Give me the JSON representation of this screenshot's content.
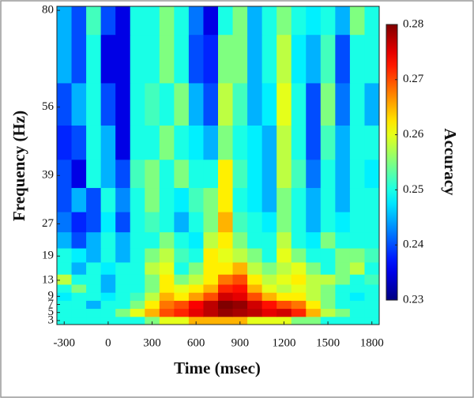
{
  "chart_data": {
    "type": "heatmap",
    "xlabel": "Time (msec)",
    "ylabel": "Frequency (Hz)",
    "colorbar_label": "Accuracy",
    "x": [
      -300,
      -200,
      -100,
      0,
      100,
      200,
      300,
      400,
      500,
      600,
      700,
      800,
      900,
      1000,
      1100,
      1200,
      1300,
      1400,
      1500,
      1600,
      1700,
      1800
    ],
    "y": [
      3,
      5,
      7,
      9,
      11,
      13,
      16,
      19,
      23,
      27,
      33,
      39,
      47,
      56,
      68,
      80
    ],
    "values": [
      [
        0.25,
        0.25,
        0.25,
        0.25,
        0.25,
        0.25,
        0.255,
        0.26,
        0.26,
        0.265,
        0.265,
        0.265,
        0.265,
        0.26,
        0.26,
        0.26,
        0.255,
        0.255,
        0.25,
        0.25,
        0.25,
        0.25
      ],
      [
        0.25,
        0.25,
        0.25,
        0.25,
        0.255,
        0.26,
        0.265,
        0.27,
        0.272,
        0.275,
        0.277,
        0.279,
        0.278,
        0.277,
        0.275,
        0.276,
        0.272,
        0.265,
        0.258,
        0.255,
        0.25,
        0.25
      ],
      [
        0.25,
        0.25,
        0.245,
        0.25,
        0.25,
        0.255,
        0.262,
        0.268,
        0.27,
        0.274,
        0.277,
        0.28,
        0.279,
        0.276,
        0.273,
        0.27,
        0.268,
        0.262,
        0.255,
        0.25,
        0.25,
        0.25
      ],
      [
        0.248,
        0.25,
        0.25,
        0.248,
        0.25,
        0.252,
        0.258,
        0.265,
        0.262,
        0.266,
        0.27,
        0.276,
        0.275,
        0.27,
        0.265,
        0.262,
        0.262,
        0.258,
        0.255,
        0.25,
        0.248,
        0.25
      ],
      [
        0.25,
        0.255,
        0.25,
        0.245,
        0.25,
        0.25,
        0.255,
        0.262,
        0.26,
        0.262,
        0.265,
        0.272,
        0.273,
        0.265,
        0.26,
        0.258,
        0.26,
        0.258,
        0.255,
        0.25,
        0.25,
        0.25
      ],
      [
        0.258,
        0.25,
        0.25,
        0.245,
        0.25,
        0.25,
        0.255,
        0.262,
        0.255,
        0.258,
        0.262,
        0.268,
        0.27,
        0.262,
        0.258,
        0.26,
        0.262,
        0.258,
        0.258,
        0.255,
        0.25,
        0.252
      ],
      [
        0.25,
        0.245,
        0.25,
        0.248,
        0.25,
        0.25,
        0.258,
        0.26,
        0.25,
        0.255,
        0.262,
        0.262,
        0.265,
        0.258,
        0.255,
        0.258,
        0.26,
        0.255,
        0.25,
        0.255,
        0.258,
        0.25
      ],
      [
        0.25,
        0.248,
        0.245,
        0.25,
        0.245,
        0.25,
        0.255,
        0.258,
        0.252,
        0.25,
        0.262,
        0.26,
        0.258,
        0.255,
        0.25,
        0.26,
        0.255,
        0.25,
        0.25,
        0.255,
        0.255,
        0.252
      ],
      [
        0.245,
        0.24,
        0.245,
        0.25,
        0.245,
        0.25,
        0.25,
        0.255,
        0.25,
        0.248,
        0.258,
        0.262,
        0.255,
        0.25,
        0.25,
        0.258,
        0.25,
        0.248,
        0.255,
        0.25,
        0.25,
        0.25
      ],
      [
        0.242,
        0.238,
        0.24,
        0.248,
        0.24,
        0.25,
        0.252,
        0.25,
        0.245,
        0.25,
        0.255,
        0.265,
        0.252,
        0.25,
        0.248,
        0.255,
        0.25,
        0.245,
        0.25,
        0.248,
        0.25,
        0.25
      ],
      [
        0.24,
        0.245,
        0.24,
        0.25,
        0.243,
        0.25,
        0.255,
        0.25,
        0.248,
        0.252,
        0.255,
        0.262,
        0.25,
        0.248,
        0.245,
        0.255,
        0.25,
        0.245,
        0.25,
        0.245,
        0.25,
        0.25
      ],
      [
        0.24,
        0.235,
        0.25,
        0.245,
        0.24,
        0.252,
        0.255,
        0.25,
        0.255,
        0.25,
        0.25,
        0.262,
        0.252,
        0.248,
        0.245,
        0.258,
        0.252,
        0.242,
        0.25,
        0.245,
        0.25,
        0.248
      ],
      [
        0.238,
        0.24,
        0.25,
        0.245,
        0.235,
        0.25,
        0.25,
        0.255,
        0.25,
        0.248,
        0.245,
        0.255,
        0.25,
        0.248,
        0.245,
        0.258,
        0.25,
        0.24,
        0.252,
        0.245,
        0.25,
        0.25
      ],
      [
        0.24,
        0.245,
        0.25,
        0.24,
        0.235,
        0.25,
        0.252,
        0.25,
        0.255,
        0.245,
        0.24,
        0.258,
        0.252,
        0.245,
        0.248,
        0.26,
        0.25,
        0.24,
        0.255,
        0.242,
        0.25,
        0.245
      ],
      [
        0.245,
        0.24,
        0.25,
        0.235,
        0.235,
        0.25,
        0.25,
        0.255,
        0.25,
        0.24,
        0.238,
        0.255,
        0.255,
        0.245,
        0.25,
        0.258,
        0.248,
        0.245,
        0.252,
        0.24,
        0.25,
        0.25
      ],
      [
        0.245,
        0.24,
        0.252,
        0.24,
        0.235,
        0.25,
        0.25,
        0.255,
        0.25,
        0.242,
        0.235,
        0.25,
        0.255,
        0.245,
        0.25,
        0.255,
        0.25,
        0.248,
        0.25,
        0.245,
        0.255,
        0.25
      ]
    ],
    "xlim": [
      -350,
      1850
    ],
    "xticks": [
      -300,
      0,
      300,
      600,
      900,
      1200,
      1500,
      1800
    ],
    "ylim": [
      2,
      81
    ],
    "yticks": [
      3,
      5,
      7,
      9,
      13,
      19,
      27,
      39,
      56,
      80
    ],
    "clim": [
      0.23,
      0.28
    ],
    "cticks": [
      0.23,
      0.24,
      0.25,
      0.26,
      0.27,
      0.28
    ],
    "colormap": "jet"
  }
}
